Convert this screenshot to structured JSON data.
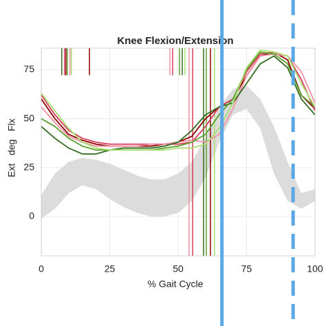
{
  "chart_data": {
    "type": "line",
    "title": "Knee Flexion/Extension",
    "xlabel": "% Gait Cycle",
    "ylabel": "Ext   deg   Flx",
    "xlim": [
      0,
      100
    ],
    "xticks": [
      0,
      25,
      50,
      75,
      100
    ],
    "ylim": [
      -20,
      86
    ],
    "yticks": [
      0,
      25,
      50,
      75
    ],
    "grid": true,
    "x": [
      0,
      5,
      10,
      15,
      20,
      25,
      30,
      35,
      40,
      45,
      50,
      55,
      60,
      65,
      70,
      75,
      80,
      85,
      90,
      95,
      100
    ],
    "band": {
      "color": "#dcdcdc",
      "lower": [
        -1,
        4,
        12,
        16,
        14,
        9,
        5,
        2,
        0,
        0,
        2,
        8,
        20,
        38,
        52,
        55,
        45,
        22,
        8,
        4,
        8
      ],
      "upper": [
        11,
        22,
        28,
        30,
        29,
        27,
        24,
        21,
        19,
        19,
        22,
        28,
        40,
        56,
        65,
        67,
        60,
        46,
        28,
        12,
        14
      ]
    },
    "series": [
      {
        "color": "#8b0000",
        "values": [
          60,
          50,
          42,
          39,
          37,
          36,
          36,
          36,
          36,
          37,
          38,
          41,
          50,
          56,
          60,
          72,
          82,
          84,
          80,
          62,
          55
        ],
        "toe_off": 61.8,
        "opposite_events": [
          9,
          17.6
        ]
      },
      {
        "color": "#d83a5a",
        "values": [
          62,
          52,
          44,
          40,
          38,
          37,
          37,
          37,
          37,
          37,
          37,
          38,
          46,
          56,
          60,
          74,
          83,
          84,
          82,
          70,
          54
        ],
        "toe_off": 55.3,
        "opposite_events": [
          8.5,
          48
        ]
      },
      {
        "color": "#f08fa0",
        "values": [
          56,
          48,
          41,
          38,
          36,
          36,
          36,
          36,
          37,
          37,
          38,
          39,
          38,
          42,
          55,
          72,
          82,
          83,
          82,
          74,
          58
        ],
        "toe_off": 54,
        "opposite_events": [
          10.5,
          47
        ]
      },
      {
        "color": "#2f6b1e",
        "values": [
          46,
          40,
          35,
          32,
          32,
          34,
          35,
          35,
          35,
          36,
          38,
          44,
          52,
          56,
          58,
          68,
          78,
          82,
          76,
          60,
          52
        ],
        "toe_off": 59.3,
        "opposite_events": [
          7.5,
          51.5
        ]
      },
      {
        "color": "#5aa02c",
        "values": [
          50,
          46,
          40,
          36,
          34,
          34,
          34,
          34,
          34,
          35,
          36,
          38,
          42,
          52,
          60,
          75,
          84,
          83,
          78,
          62,
          56
        ],
        "toe_off": 60.3,
        "opposite_events": [
          9.5,
          50.5
        ]
      },
      {
        "color": "#a8e070",
        "values": [
          63,
          54,
          45,
          38,
          35,
          34,
          34,
          34,
          34,
          34,
          35,
          35,
          37,
          45,
          58,
          76,
          85,
          84,
          82,
          68,
          56
        ],
        "toe_off": 63.3,
        "opposite_events": [
          11,
          52.5
        ]
      }
    ],
    "markers": [
      {
        "value": 66,
        "dashed": false
      },
      {
        "value": 92,
        "dashed": true
      }
    ],
    "marker_color": "#5aa9e6"
  }
}
